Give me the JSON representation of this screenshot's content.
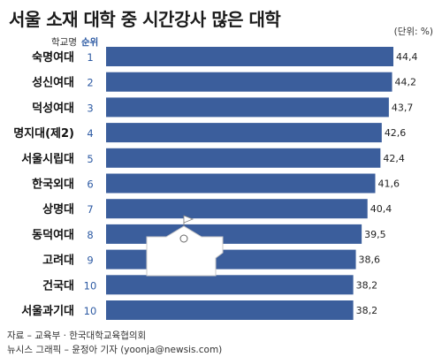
{
  "title": "서울 소재 대학 중 시간강사 많은 대학",
  "unit": "(단위: %)",
  "headers": {
    "school": "학교명",
    "rank": "순위"
  },
  "footer": {
    "source": "자료 – 교육부 · 한국대학교육협의회",
    "credit": "뉴시스 그래픽 – 윤정아 기자 (yoonja@newsis.com)"
  },
  "colors": {
    "bar": "#3b5e9c",
    "rank": "#2d5aa3",
    "icon": "#ffffff"
  },
  "chart_data": {
    "type": "bar",
    "orientation": "horizontal",
    "categories": [
      "숙명여대",
      "성신여대",
      "덕성여대",
      "명지대(제2)",
      "서울시립대",
      "한국외대",
      "상명대",
      "동덕여대",
      "고려대",
      "건국대",
      "서울과기대"
    ],
    "ranks": [
      "1",
      "2",
      "3",
      "4",
      "5",
      "6",
      "7",
      "8",
      "9",
      "10",
      "10"
    ],
    "values": [
      44.4,
      44.2,
      43.7,
      42.6,
      42.4,
      41.6,
      40.4,
      39.5,
      38.6,
      38.2,
      38.2
    ],
    "value_labels": [
      "44,4",
      "44,2",
      "43,7",
      "42,6",
      "42,4",
      "41,6",
      "40,4",
      "39,5",
      "38,6",
      "38,2",
      "38,2"
    ]
  }
}
